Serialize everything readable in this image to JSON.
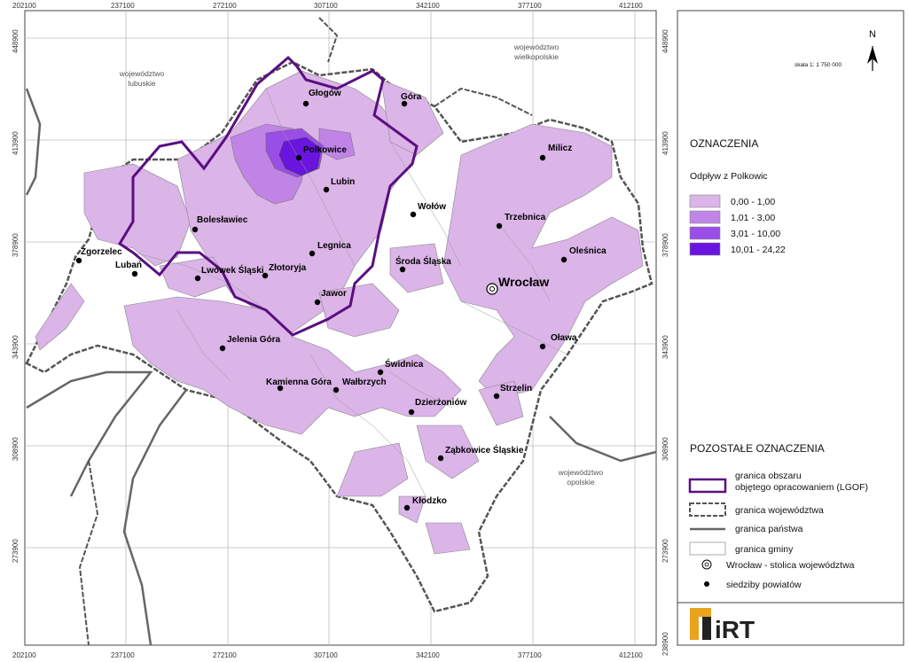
{
  "x_ticks": [
    "202100",
    "237100",
    "272100",
    "307100",
    "342100",
    "377100",
    "412100"
  ],
  "y_ticks": [
    "448900",
    "413900",
    "378900",
    "343900",
    "308900",
    "273900",
    "238900"
  ],
  "regions": [
    {
      "id": "lubuskie",
      "text": "województwo\nlubuskie"
    },
    {
      "id": "wielkopolskie",
      "text": "województwo\nwielkopolskie"
    },
    {
      "id": "opolskie",
      "text": "województwo\nopolskie"
    }
  ],
  "cities": [
    {
      "name": "Głogów"
    },
    {
      "name": "Góra"
    },
    {
      "name": "Polkowice"
    },
    {
      "name": "Milicz"
    },
    {
      "name": "Lubin"
    },
    {
      "name": "Bolesławiec"
    },
    {
      "name": "Wołów"
    },
    {
      "name": "Trzebnica"
    },
    {
      "name": "Zgorzelec"
    },
    {
      "name": "Lubań"
    },
    {
      "name": "Lwówek Śląski"
    },
    {
      "name": "Złotoryja"
    },
    {
      "name": "Legnica"
    },
    {
      "name": "Środa Śląska"
    },
    {
      "name": "Oleśnica"
    },
    {
      "name": "Jawor"
    },
    {
      "name": "Jelenia Góra"
    },
    {
      "name": "Oława"
    },
    {
      "name": "Świdnica"
    },
    {
      "name": "Kamienna Góra"
    },
    {
      "name": "Wałbrzych"
    },
    {
      "name": "Strzelin"
    },
    {
      "name": "Dzierżoniów"
    },
    {
      "name": "Ząbkowice Śląskie"
    },
    {
      "name": "Kłodzko"
    }
  ],
  "capital": {
    "name": "Wrocław"
  },
  "north_label": "N",
  "scale_text": "skala 1: 1 750 000",
  "legend": {
    "title": "OZNACZENIA",
    "subtitle": "Odpływ z Polkowic",
    "classes": [
      {
        "label": "0,00 - 1,00",
        "color": "#dbb4e8"
      },
      {
        "label": "1,01 - 3,00",
        "color": "#c084e6"
      },
      {
        "label": "3,01 - 10,00",
        "color": "#9a4ee8"
      },
      {
        "label": "10,01 - 24,22",
        "color": "#6a14e0"
      }
    ]
  },
  "other_legend": {
    "title": "POZOSTAŁE OZNACZENIA",
    "items": [
      {
        "id": "lgof",
        "label": "granica obszaru\nobjętego opracowaniem (LGOF)"
      },
      {
        "id": "voiv",
        "label": "granica województwa"
      },
      {
        "id": "state",
        "label": "granica państwa"
      },
      {
        "id": "gmina",
        "label": "granica gminy"
      },
      {
        "id": "capital",
        "label": "Wrocław - stolica województwa"
      },
      {
        "id": "seat",
        "label": "siedziby powiatów"
      }
    ]
  },
  "logo_text": "iRT",
  "colors": {
    "light": "#dbb4e8",
    "medium": "#c084e6",
    "strong": "#9a4ee8",
    "max": "#6a14e0",
    "lgof": "#5a0f80",
    "logo": "#e8a41c"
  }
}
